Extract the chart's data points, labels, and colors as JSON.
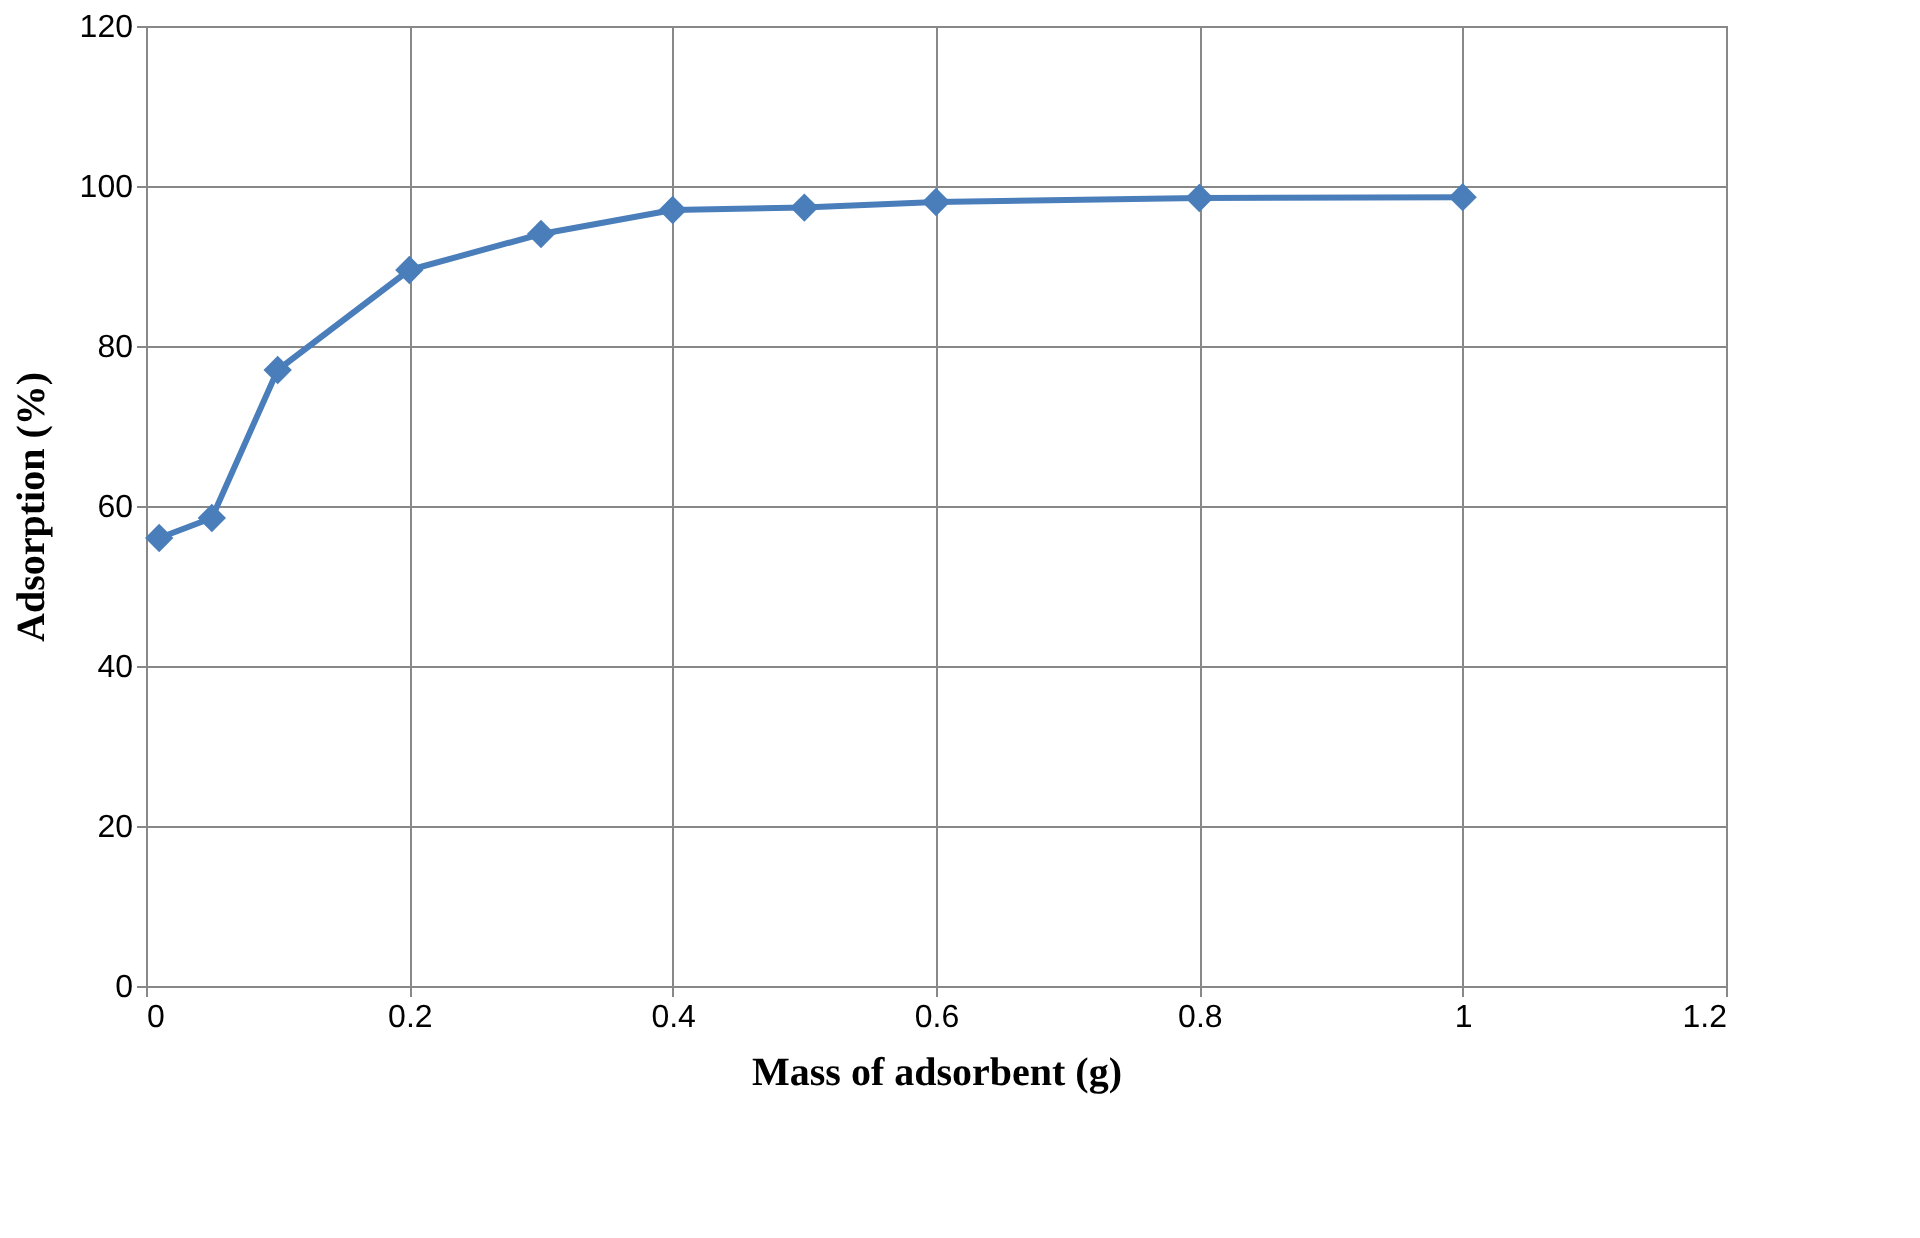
{
  "chart_data": {
    "type": "line",
    "xlabel": "Mass of adsorbent (g)",
    "ylabel": "Adsorption (%)",
    "x": [
      0.01,
      0.05,
      0.1,
      0.2,
      0.3,
      0.4,
      0.5,
      0.6,
      0.8,
      1.0
    ],
    "series": [
      {
        "color": "#4a7ebb",
        "values": [
          56,
          58.5,
          77,
          89.5,
          94,
          97,
          97.3,
          98,
          98.5,
          98.6
        ]
      }
    ],
    "xlim": [
      0,
      1.2
    ],
    "xticks": [
      0,
      0.2,
      0.4,
      0.6,
      0.8,
      1,
      1.2
    ],
    "ylim": [
      0,
      120
    ],
    "yticks": [
      0,
      20,
      40,
      60,
      80,
      100,
      120
    ],
    "grid": true,
    "marker": "diamond",
    "line_style": "solid"
  }
}
